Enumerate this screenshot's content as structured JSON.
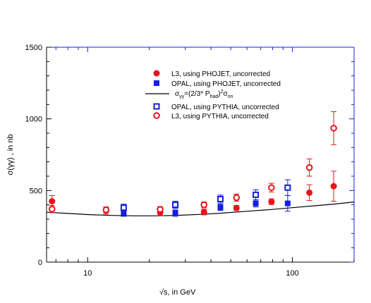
{
  "chart_data": {
    "type": "scatter",
    "title": "",
    "xlabel": "√s, in GeV",
    "ylabel": "σ(γγ) , in nb",
    "xscale": "log",
    "xlim": [
      6.3,
      200
    ],
    "ylim": [
      0,
      1500
    ],
    "xticks": [
      10,
      100
    ],
    "xtick_labels": [
      "10",
      "100"
    ],
    "yticks": [
      0,
      500,
      1000,
      1500
    ],
    "ytick_labels": [
      "0",
      "500",
      "1000",
      "1500"
    ],
    "grid": false,
    "legend_position": "top-right",
    "series": [
      {
        "name": "L3,      using PHOJET, uncorrected",
        "marker": "filled-circle",
        "color": "#e8141c",
        "x": [
          6.7,
          12.3,
          22.6,
          37.0,
          53.3,
          79.0,
          121.0,
          159.0
        ],
        "y": [
          425,
          360,
          345,
          350,
          378,
          422,
          485,
          530
        ],
        "yerr": [
          40,
          25,
          20,
          20,
          18,
          20,
          55,
          105
        ]
      },
      {
        "name": "OPAL, using PHOJET, uncorrected",
        "marker": "filled-square",
        "color": "#1420d8",
        "x": [
          15.0,
          26.8,
          44.5,
          66.2,
          94.8
        ],
        "y": [
          345,
          342,
          382,
          410,
          410
        ],
        "yerr": [
          25,
          22,
          22,
          25,
          55
        ]
      },
      {
        "name": "σγγ=(2/3* Phad)2σnn",
        "marker": "line",
        "color": "#000000",
        "x": [
          6.3,
          8,
          10,
          13,
          17,
          22,
          28,
          35,
          45,
          60,
          80,
          100,
          130,
          160,
          200
        ],
        "y": [
          348,
          340,
          332,
          326,
          323,
          323,
          327,
          333,
          342,
          355,
          368,
          380,
          394,
          405,
          420
        ]
      },
      {
        "name": "OPAL, using PYTHIA, uncorrected",
        "marker": "open-square",
        "color": "#1420d8",
        "x": [
          15.0,
          26.8,
          44.5,
          66.2,
          94.8
        ],
        "y": [
          380,
          400,
          440,
          470,
          520
        ],
        "yerr": [
          25,
          25,
          28,
          35,
          55
        ]
      },
      {
        "name": "L3,      using PYTHIA, uncorrected",
        "marker": "open-circle",
        "color": "#e8141c",
        "x": [
          6.7,
          12.3,
          22.6,
          37.0,
          53.3,
          79.0,
          121.0,
          159.0
        ],
        "y": [
          370,
          365,
          368,
          400,
          450,
          520,
          660,
          935
        ],
        "yerr": [
          25,
          20,
          20,
          20,
          25,
          30,
          60,
          115
        ]
      }
    ]
  },
  "legend": {
    "items": [
      {
        "label": "L3,      using PHOJET, uncorrected"
      },
      {
        "label": "OPAL, using PHOJET, uncorrected"
      },
      {
        "label_parts": [
          "σ",
          "γγ",
          "=(2/3* P",
          "had",
          ")",
          "2",
          "σ",
          "nn"
        ]
      },
      {
        "label": "OPAL, using PYTHIA, uncorrected"
      },
      {
        "label": "L3,      using PYTHIA, uncorrected"
      }
    ]
  },
  "axis_labels": {
    "x": "√s, in GeV",
    "y": "σ(γγ) , in nb"
  }
}
